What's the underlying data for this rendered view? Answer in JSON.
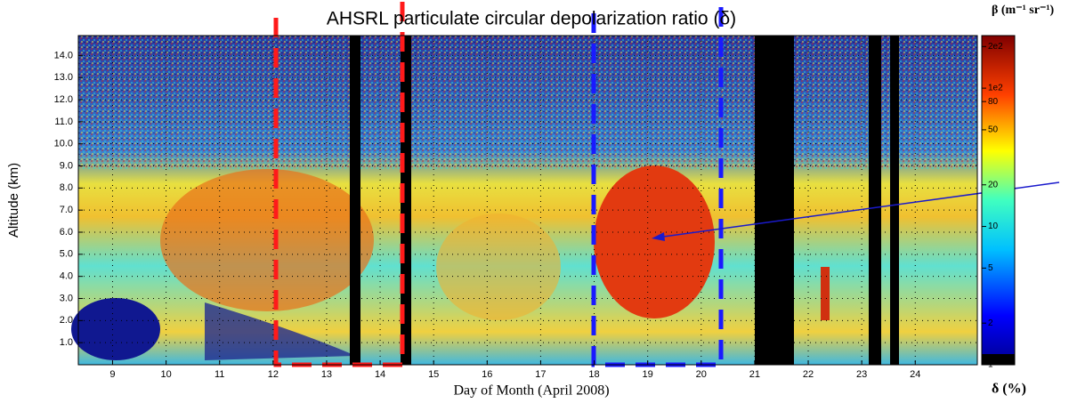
{
  "chart_data": {
    "type": "heatmap",
    "title": "AHSRL particulate circular depolarization ratio (δ)",
    "xlabel": "Day of Month (April 2008)",
    "ylabel": "Altitude (km)",
    "xlim": [
      8.36,
      25.16
    ],
    "xticks": [
      9,
      10,
      11,
      12,
      13,
      14,
      15,
      16,
      17,
      18,
      19,
      20,
      21,
      22,
      23,
      24
    ],
    "ylim": [
      0,
      14.9
    ],
    "yticks": [
      {
        "value": 1,
        "label": "1.0"
      },
      {
        "value": 2,
        "label": "2.0"
      },
      {
        "value": 3,
        "label": "3.0"
      },
      {
        "value": 4,
        "label": "4.0"
      },
      {
        "value": 5,
        "label": "5.0"
      },
      {
        "value": 6,
        "label": "6.0"
      },
      {
        "value": 7,
        "label": "7.0"
      },
      {
        "value": 8,
        "label": "8.0"
      },
      {
        "value": 9,
        "label": "9.0"
      },
      {
        "value": 10,
        "label": "10.0"
      },
      {
        "value": 11,
        "label": "11.0"
      },
      {
        "value": 12,
        "label": "12.0"
      },
      {
        "value": 13,
        "label": "13.0"
      },
      {
        "value": 14,
        "label": "14.0"
      }
    ],
    "grid": true,
    "colorbar": {
      "title": "β (m⁻¹ sr⁻¹)",
      "label": "δ (%)",
      "log": true,
      "lim": [
        1,
        240
      ],
      "ticks": [
        {
          "value": 200,
          "label": "2e2"
        },
        {
          "value": 100,
          "label": "1e2"
        },
        80,
        50,
        20,
        10,
        5,
        2,
        1
      ]
    }
  }
}
